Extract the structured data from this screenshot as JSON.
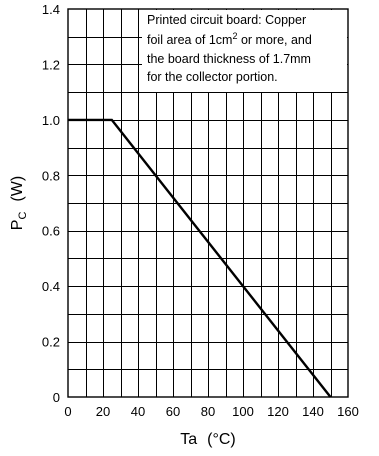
{
  "chart_data": {
    "type": "line",
    "title": "",
    "xlabel": "Ta",
    "xunit": "(°C)",
    "ylabel": "P",
    "ylabel_sub": "C",
    "yunit": "(W)",
    "xlim": [
      0,
      160
    ],
    "ylim": [
      0,
      1.4
    ],
    "x_ticks": [
      0,
      20,
      40,
      60,
      80,
      100,
      120,
      140,
      160
    ],
    "y_ticks": [
      0,
      0.2,
      0.4,
      0.6,
      0.8,
      1.0,
      1.2,
      1.4
    ],
    "x_tick_labels": [
      "0",
      "20",
      "40",
      "60",
      "80",
      "100",
      "120",
      "140",
      "160"
    ],
    "y_tick_labels": [
      "0",
      "0.2",
      "0.4",
      "0.6",
      "0.8",
      "1.0",
      "1.2",
      "1.4"
    ],
    "grid": true,
    "minor_x_step": 10,
    "minor_y_step": 0.1,
    "series": [
      {
        "x": [
          0,
          25,
          150
        ],
        "y": [
          1.0,
          1.0,
          0
        ]
      }
    ],
    "annotation": {
      "position": "top-right",
      "lines": [
        "Printed circuit board: Copper",
        "foil area of 1cm",
        "the board thickness of 1.7mm",
        "for the collector portion."
      ],
      "line2_superscript": "2",
      "line2_suffix": " or more, and"
    }
  }
}
